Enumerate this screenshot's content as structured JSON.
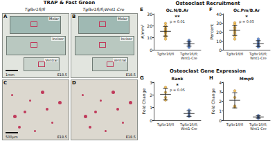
{
  "figure": {
    "title": "TRAP & Fast Green",
    "genotypes": [
      "Tgfbr1fl/fl",
      "Tgfbr1fl/fl;Wnt1-Cre"
    ],
    "panels": [
      {
        "label": "A",
        "stage": "E18.5",
        "regions": [
          "Molar",
          "Incisor",
          "Ventral"
        ],
        "scale_bar": "1mm"
      },
      {
        "label": "B",
        "stage": "E18.5",
        "regions": [
          "Molar",
          "Incisor",
          "Ventral"
        ]
      },
      {
        "label": "C",
        "stage": "E18.5",
        "scale_bar": "500μm"
      },
      {
        "label": "D",
        "stage": "E18.5"
      }
    ],
    "sections": [
      "Osteoclast Recruitment",
      "Osteoclast Gene Expression"
    ]
  },
  "chart_data": [
    {
      "type": "scatter",
      "panel": "E",
      "title": "Oc.N/B.Ar",
      "y_label": "#/mm²",
      "categories": [
        "Tgfbr1fl/fl",
        "Tgfbr1fl/fl;\nWnt1-Cre"
      ],
      "colors": [
        "#f2b134",
        "#4a78c8"
      ],
      "values": [
        [
          22,
          18,
          15,
          14,
          12,
          20,
          16,
          11,
          9,
          17
        ],
        [
          6,
          4,
          8,
          3,
          5,
          2,
          7,
          5
        ]
      ],
      "means": [
        15.4,
        5
      ],
      "errors": [
        4,
        2
      ],
      "ylim": [
        0,
        30
      ],
      "yticks": [
        0,
        10,
        20,
        30
      ],
      "annotations": [
        "**",
        "p = 0.01"
      ]
    },
    {
      "type": "scatter",
      "panel": "F",
      "title": "Oc.Pm/B.Ar",
      "y_label": "Percent",
      "categories": [
        "Tgfbr1fl/fl",
        "Tgfbr1fl/fl;\nWnt1-Cre"
      ],
      "colors": [
        "#f2b134",
        "#4a78c8"
      ],
      "values": [
        [
          30,
          25,
          22,
          18,
          20,
          15,
          28,
          12,
          24
        ],
        [
          8,
          5,
          10,
          4,
          6,
          12,
          3
        ]
      ],
      "means": [
        21.6,
        6.9
      ],
      "errors": [
        5.6,
        3.2
      ],
      "ylim": [
        0,
        40
      ],
      "yticks": [
        0,
        10,
        20,
        30,
        40
      ],
      "annotations": [
        "*",
        "p = 0.05"
      ]
    },
    {
      "type": "scatter",
      "panel": "G",
      "title": "Rank",
      "y_label": "Fold Change",
      "categories": [
        "Tgfbr1fl/fl",
        "Tgfbr1fl/fl;\nWnt1-Cre"
      ],
      "colors": [
        "#f2b134",
        "#4a78c8"
      ],
      "values": [
        [
          2.6,
          1.8,
          2.2,
          1.6
        ],
        [
          0.6,
          0.3,
          0.8,
          0.4
        ]
      ],
      "means": [
        2.05,
        0.53
      ],
      "errors": [
        0.45,
        0.22
      ],
      "ylim": [
        0,
        3
      ],
      "yticks": [
        0,
        1,
        2,
        3
      ],
      "annotations": [
        "*",
        "p = 0.05"
      ]
    },
    {
      "type": "scatter",
      "panel": "H",
      "title": "Mmp9",
      "y_label": "Fold Change",
      "categories": [
        "Tgfbr1fl/fl",
        "Tgfbr1fl/fl;\nWnt1-Cre"
      ],
      "colors": [
        "#f2b134",
        "#4a78c8"
      ],
      "values": [
        [
          3.1,
          1.5,
          2.4,
          1.4
        ],
        [
          0.4,
          0.2,
          0.5,
          0.3
        ]
      ],
      "means": [
        2.1,
        0.35
      ],
      "errors": [
        0.8,
        0.13
      ],
      "ylim": [
        0,
        4
      ],
      "yticks": [
        0,
        1,
        2,
        3,
        4
      ]
    }
  ]
}
